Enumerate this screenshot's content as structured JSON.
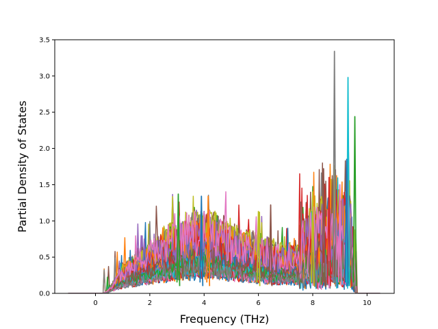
{
  "chart_data": {
    "type": "line",
    "xlabel": "Frequency (THz)",
    "ylabel": "Partial Density of States",
    "xlim": [
      -1.5,
      11.0
    ],
    "ylim": [
      0.0,
      3.5
    ],
    "xticks": [
      0,
      2,
      4,
      6,
      8,
      10
    ],
    "xtick_labels": [
      "0",
      "2",
      "4",
      "6",
      "8",
      "10"
    ],
    "yticks": [
      0.0,
      0.5,
      1.0,
      1.5,
      2.0,
      2.5,
      3.0,
      3.5
    ],
    "ytick_labels": [
      "0.0",
      "0.5",
      "1.0",
      "1.5",
      "2.0",
      "2.5",
      "3.0",
      "3.5"
    ],
    "grid": false,
    "legend": "none",
    "x_range_of_curves": [
      -1.0,
      10.5
    ],
    "series_count": 48,
    "palette": [
      "#1f77b4",
      "#ff7f0e",
      "#2ca02c",
      "#d62728",
      "#9467bd",
      "#8c564b",
      "#e377c2",
      "#7f7f7f",
      "#bcbd22",
      "#17becf"
    ],
    "envelope": {
      "x": [
        -1.0,
        0.3,
        0.5,
        1.0,
        1.5,
        2.0,
        2.5,
        3.0,
        3.5,
        4.0,
        4.5,
        5.0,
        5.5,
        6.0,
        6.5,
        7.0,
        7.5,
        8.0,
        8.5,
        9.0,
        9.4,
        9.6,
        10.5
      ],
      "y": [
        0.0,
        0.0,
        0.05,
        0.25,
        0.35,
        0.45,
        0.55,
        0.65,
        0.7,
        0.72,
        0.68,
        0.6,
        0.55,
        0.5,
        0.45,
        0.42,
        0.45,
        0.55,
        0.6,
        0.65,
        0.6,
        0.0,
        0.0
      ]
    },
    "notable_peaks": [
      {
        "x": 8.8,
        "y": 3.34,
        "color": "#7f7f7f"
      },
      {
        "x": 9.3,
        "y": 2.98,
        "color": "#17becf"
      },
      {
        "x": 9.55,
        "y": 2.44,
        "color": "#2ca02c"
      },
      {
        "x": 8.4,
        "y": 1.72,
        "color": "#8c564b"
      },
      {
        "x": 8.6,
        "y": 1.6,
        "color": "#d62728"
      },
      {
        "x": 9.25,
        "y": 1.85,
        "color": "#1f77b4"
      },
      {
        "x": 9.0,
        "y": 1.5,
        "color": "#e377c2"
      },
      {
        "x": 8.0,
        "y": 1.4,
        "color": "#bcbd22"
      },
      {
        "x": 3.05,
        "y": 1.37,
        "color": "#2ca02c"
      },
      {
        "x": 4.15,
        "y": 1.34,
        "color": "#ff7f0e"
      },
      {
        "x": 3.9,
        "y": 1.34,
        "color": "#1f77b4"
      },
      {
        "x": 6.45,
        "y": 1.22,
        "color": "#8c564b"
      },
      {
        "x": 6.0,
        "y": 1.13,
        "color": "#bcbd22"
      }
    ]
  }
}
